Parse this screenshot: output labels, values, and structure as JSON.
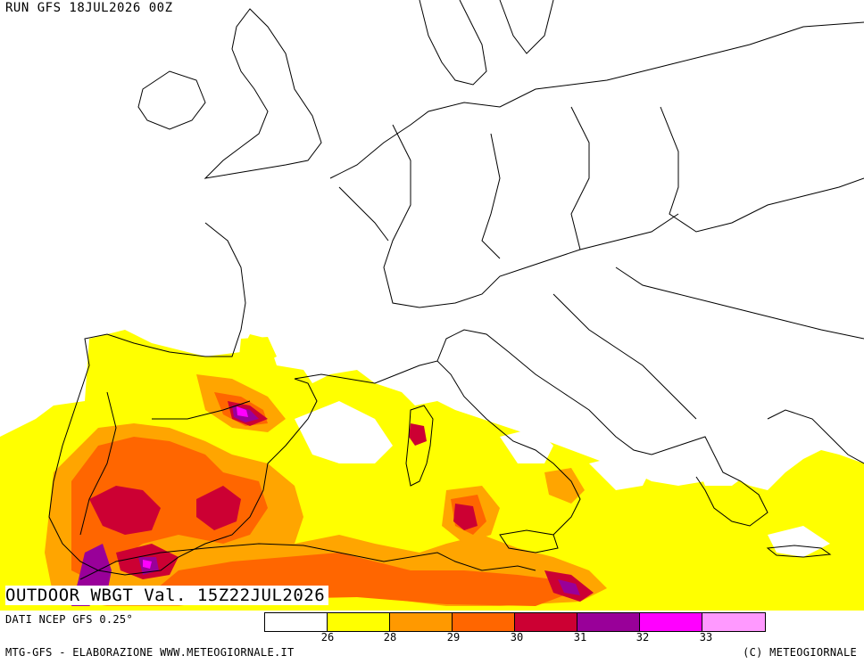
{
  "header": {
    "run": "RUN GFS 18JUL2026 00Z"
  },
  "title": "OUTDOOR WBGT Val. 15Z22JUL2026",
  "data_source": "DATI NCEP GFS 0.25°",
  "footer": {
    "left": "MTG-GFS - ELABORAZIONE WWW.METEOGIORNALE.IT",
    "right": "(C) METEOGIORNALE"
  },
  "legend": {
    "colors": [
      "#ffffff",
      "#ffff00",
      "#ff9900",
      "#ff6600",
      "#cc0033",
      "#990099",
      "#ff00ff",
      "#ff99ff"
    ],
    "ticks": [
      "26",
      "28",
      "29",
      "30",
      "31",
      "32",
      "33"
    ]
  },
  "colors": {
    "c26": "#ffff00",
    "c28": "#ffa500",
    "c29": "#ff6600",
    "c30": "#cc0033",
    "c31": "#990099",
    "c32": "#ff00ff",
    "c33": "#ff99ff",
    "border": "#000000"
  }
}
